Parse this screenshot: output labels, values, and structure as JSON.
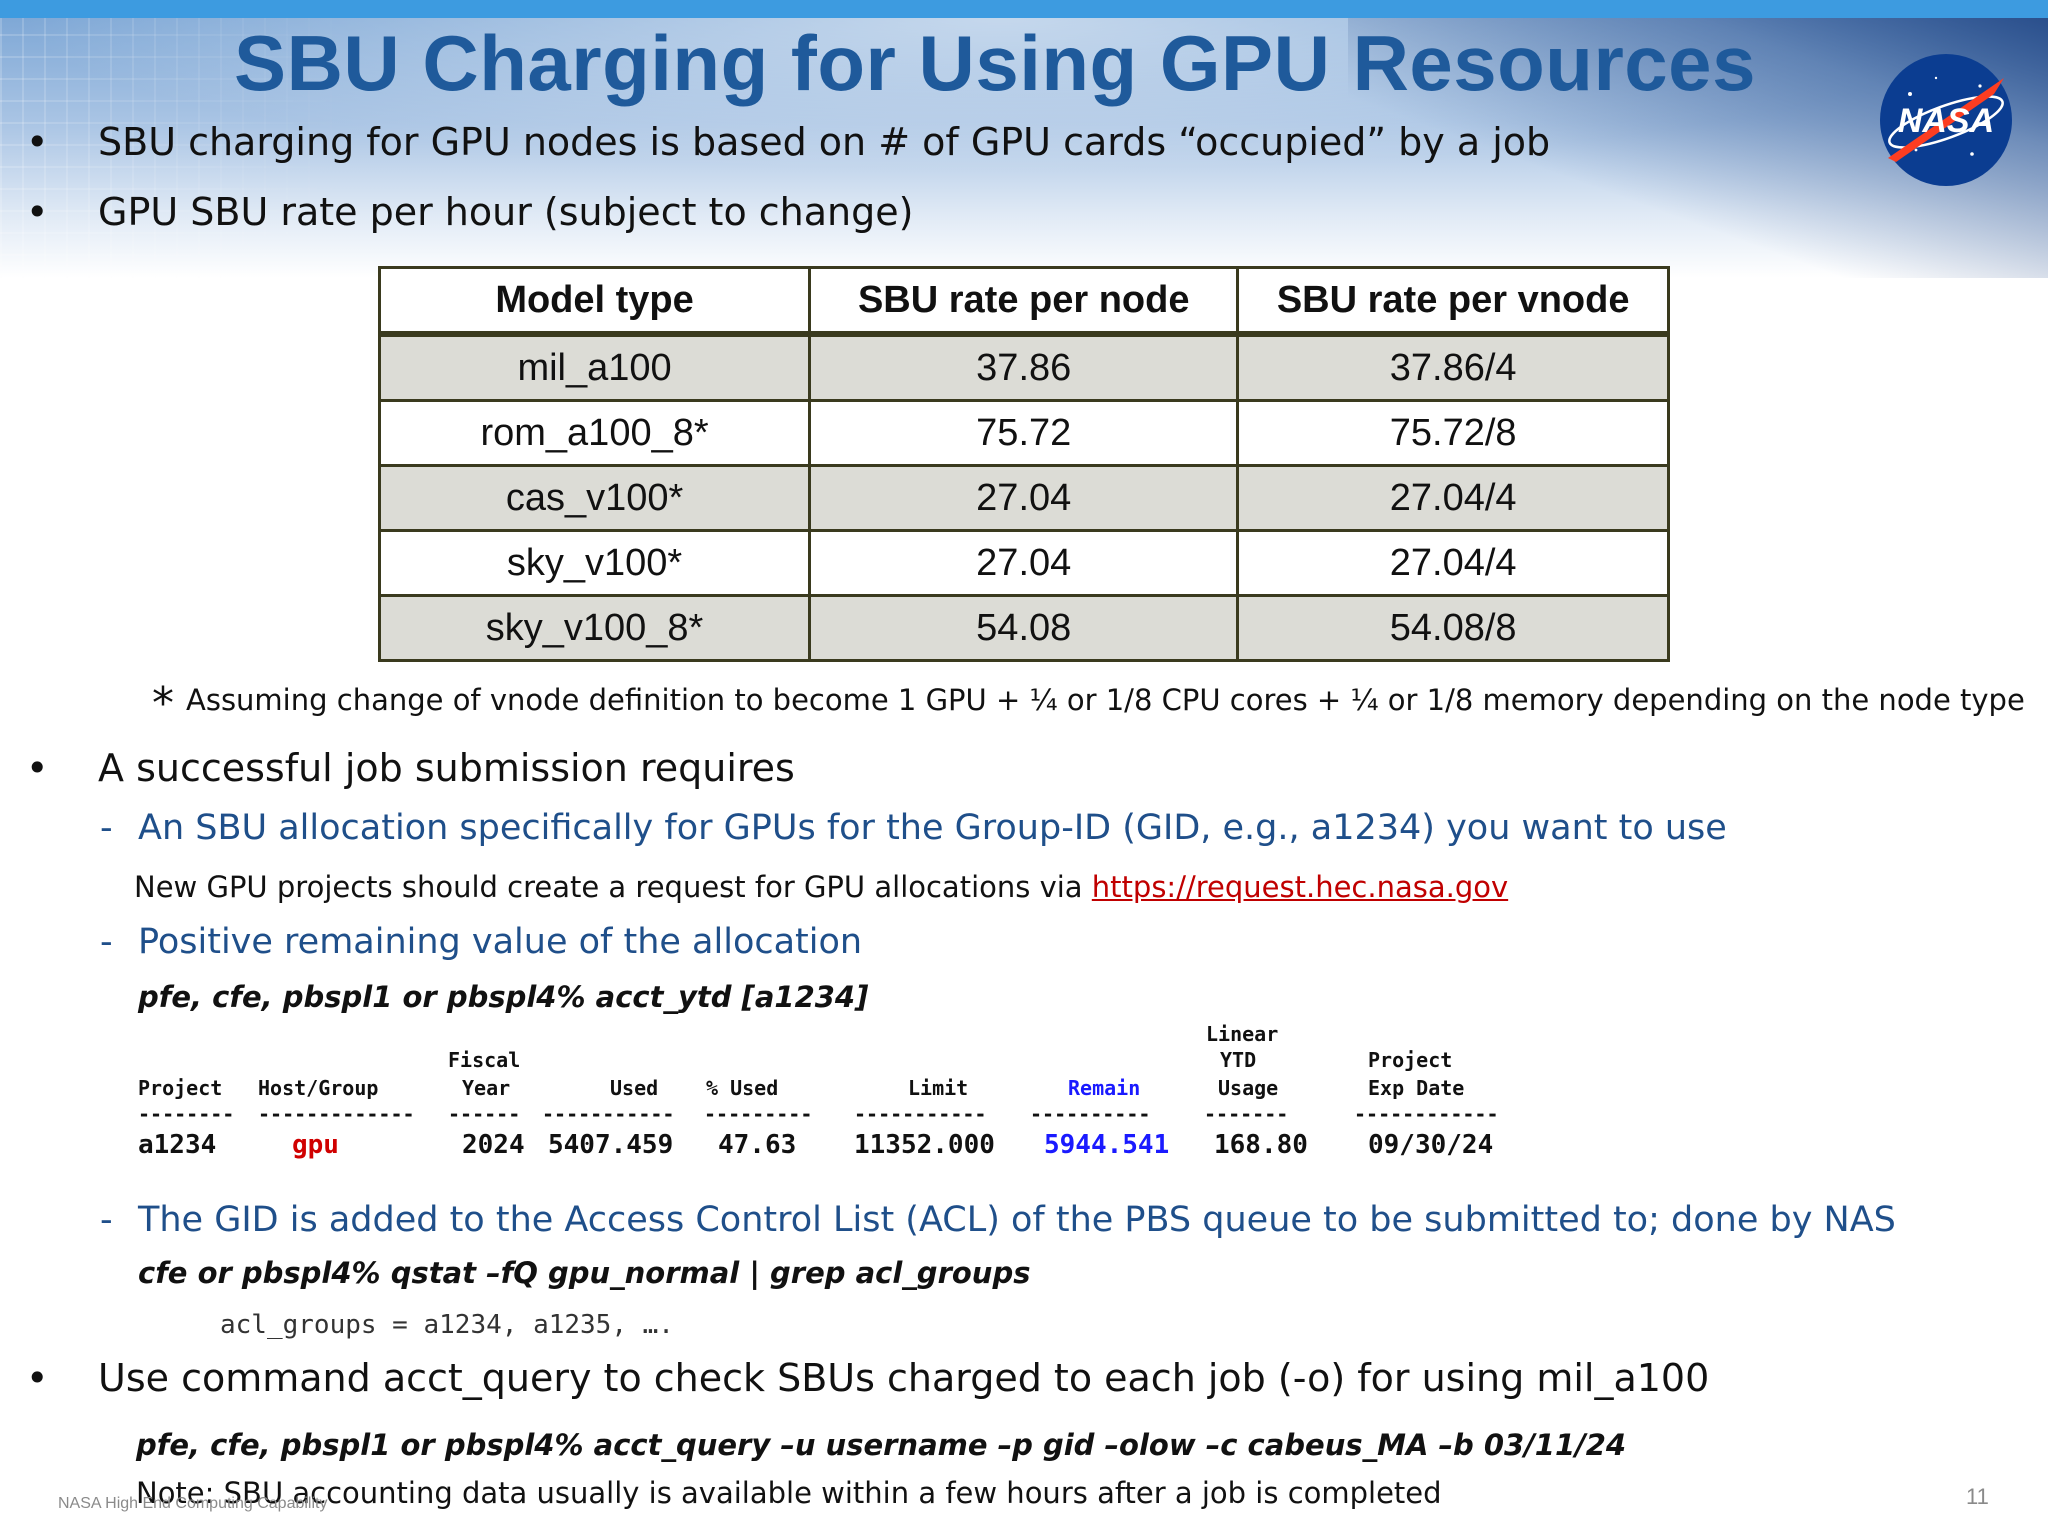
{
  "title": "SBU Charging for Using GPU Resources",
  "logo_text": "NASA",
  "bullets": {
    "b1": "SBU charging for GPU nodes is based on # of GPU cards “occupied” by a job",
    "b2": "GPU SBU rate per hour (subject to change)",
    "b3": "A successful job submission requires",
    "b4": "Use command acct_query to check SBUs charged to each job (-o) for using mil_a100"
  },
  "bullet_char": "•",
  "dash_char": "-",
  "table": {
    "headers": [
      "Model type",
      "SBU rate per node",
      "SBU rate per vnode"
    ],
    "rows": [
      [
        "mil_a100",
        "37.86",
        "37.86/4"
      ],
      [
        "rom_a100_8*",
        "75.72",
        "75.72/8"
      ],
      [
        "cas_v100*",
        "27.04",
        "27.04/4"
      ],
      [
        "sky_v100*",
        "27.04",
        "27.04/4"
      ],
      [
        "sky_v100_8*",
        "54.08",
        "54.08/8"
      ]
    ]
  },
  "footnote": {
    "star": "*",
    "text": "Assuming change of vnode definition to become 1 GPU + ¼ or 1/8 CPU cores +  ¼ or 1/8 memory depending on the node type"
  },
  "requirements": {
    "sub1": "An SBU allocation specifically for GPUs for the Group-ID (GID, e.g., a1234) you want to use",
    "note1_prefix": "New GPU projects should create a request for GPU allocations via ",
    "note1_link": "https://request.hec.nasa.gov",
    "sub2": "Positive remaining value of the allocation",
    "cmd1": "pfe, cfe, pbspl1 or pbspl4% acct_ytd  [a1234]",
    "sub3": "The GID is added to the Access Control List (ACL) of the PBS queue to be submitted to; done by NAS",
    "cmd2": "cfe or pbspl4% qstat –fQ gpu_normal | grep acl_groups",
    "acl_output": "acl_groups = a1234, a1235, ….",
    "cmd3": "pfe, cfe, pbspl1 or pbspl4% acct_query –u username –p gid –olow –c cabeus_MA –b 03/11/24",
    "note2": "Note: SBU accounting data usually is available within a few hours after a job is completed"
  },
  "acct_output": {
    "header_line1": "Linear",
    "header_fiscal": "Fiscal",
    "header_ytd": "YTD",
    "header_project": "Project",
    "columns": [
      "Project",
      "Host/Group",
      "Year",
      "Used",
      "% Used",
      "Limit",
      "Remain",
      "Usage",
      "Exp Date"
    ],
    "dashes": [
      "--------",
      "-------------",
      "------",
      "-----------",
      "---------",
      "-----------",
      "----------",
      "-------",
      "------------"
    ],
    "row": [
      "a1234",
      "gpu",
      "2024",
      "5407.459",
      "47.63",
      "11352.000",
      "5944.541",
      "168.80",
      "09/30/24"
    ],
    "highlight_colors": {
      "gpu": "#d00000",
      "remain": "#1a1aff"
    }
  },
  "footer": {
    "left": "NASA High End Computing Capability",
    "page_number": "11"
  }
}
